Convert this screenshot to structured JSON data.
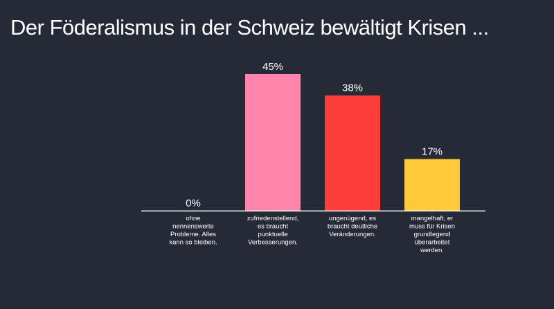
{
  "title": "Der Föderalismus in der Schweiz bewältigt Krisen ...",
  "chart_data": {
    "type": "bar",
    "title": "Der Föderalismus in der Schweiz bewältigt Krisen ...",
    "xlabel": "",
    "ylabel": "",
    "ylim": [
      0,
      45
    ],
    "grid": false,
    "legend": "none",
    "categories": [
      [
        "ohne",
        "nennenswerte",
        "Probleme. Alles",
        "kann so bleiben."
      ],
      [
        "zufriedenstellend,",
        "es braucht",
        "punktuelle",
        "Verbesserungen."
      ],
      [
        "ungenügend, es",
        "braucht deutliche",
        "Veränderungen."
      ],
      [
        "mangelhaft, er",
        "muss für Krisen",
        "grundlegend",
        "überarbeitet",
        "werden."
      ]
    ],
    "values": [
      0,
      45,
      38,
      17
    ],
    "value_labels": [
      "0%",
      "45%",
      "38%",
      "17%"
    ],
    "colors": [
      "#ffffff",
      "#ff85ac",
      "#fd3d3a",
      "#ffc93a"
    ],
    "background": "#262a36",
    "axis_color": "#ffffff"
  }
}
